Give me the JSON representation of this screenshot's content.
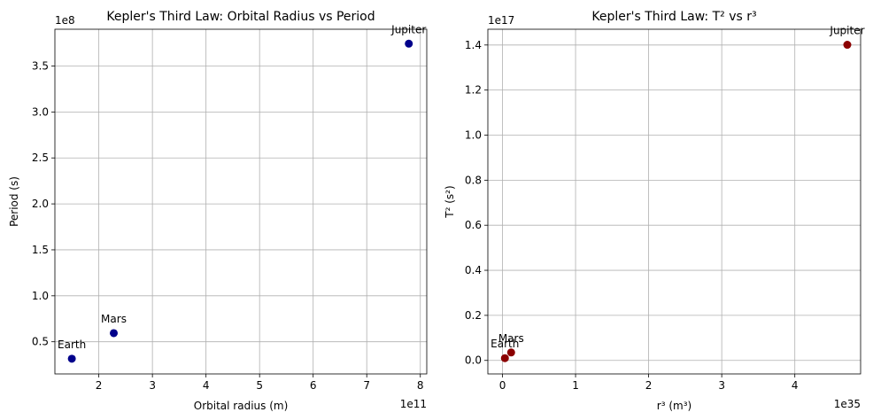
{
  "chart_data": [
    {
      "type": "scatter",
      "title": "Kepler's Third Law: Orbital Radius vs Period",
      "xlabel": "Orbital radius (m)",
      "ylabel": "Period (s)",
      "x_offset_label": "1e11",
      "y_offset_label": "1e8",
      "xlim": [
        118000000000.0,
        812000000000.0
      ],
      "ylim": [
        15000000.0,
        390000000.0
      ],
      "xticks": [
        200000000000.0,
        300000000000.0,
        400000000000.0,
        500000000000.0,
        600000000000.0,
        700000000000.0,
        800000000000.0
      ],
      "xtick_labels": [
        "2",
        "3",
        "4",
        "5",
        "6",
        "7",
        "8"
      ],
      "yticks": [
        50000000.0,
        100000000.0,
        150000000.0,
        200000000.0,
        250000000.0,
        300000000.0,
        350000000.0
      ],
      "ytick_labels": [
        "0.5",
        "1.0",
        "1.5",
        "2.0",
        "2.5",
        "3.0",
        "3.5"
      ],
      "grid": true,
      "color": "#00008b",
      "points": [
        {
          "label": "Earth",
          "x": 149600000000.0,
          "y": 31560000.0
        },
        {
          "label": "Mars",
          "x": 227900000000.0,
          "y": 59350000.0
        },
        {
          "label": "Jupiter",
          "x": 778500000000.0,
          "y": 374300000.0
        }
      ]
    },
    {
      "type": "scatter",
      "title": "Kepler's Third Law: T² vs r³",
      "xlabel": "r³ (m³)",
      "ylabel": "T² (s²)",
      "x_offset_label": "1e35",
      "y_offset_label": "1e17",
      "xlim": [
        -2e+34,
        4.9e+35
      ],
      "ylim": [
        -6000000000000000.0,
        1.47e+17
      ],
      "xticks": [
        0,
        1e+35,
        2e+35,
        3e+35,
        4e+35
      ],
      "xtick_labels": [
        "0",
        "1",
        "2",
        "3",
        "4"
      ],
      "yticks": [
        0,
        2e+16,
        4e+16,
        6e+16,
        8e+16,
        1e+17,
        1.2e+17,
        1.4e+17
      ],
      "ytick_labels": [
        "0.0",
        "0.2",
        "0.4",
        "0.6",
        "0.8",
        "1.0",
        "1.2",
        "1.4"
      ],
      "grid": true,
      "color": "#8b0000",
      "points": [
        {
          "label": "Earth",
          "x": 3.35e+33,
          "y": 996000000000000.0
        },
        {
          "label": "Mars",
          "x": 1.184e+34,
          "y": 3520000000000000.0
        },
        {
          "label": "Jupiter",
          "x": 4.718e+35,
          "y": 1.401e+17
        }
      ]
    }
  ]
}
